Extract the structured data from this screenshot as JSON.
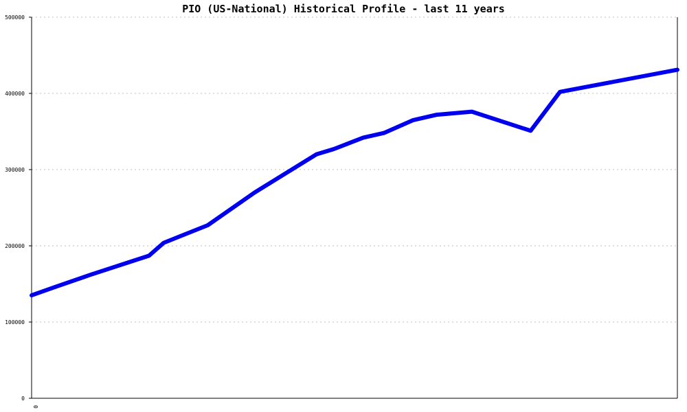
{
  "chart_data": {
    "type": "line",
    "title": "PIO (US-National) Historical Profile - last 11 years",
    "xlabel": "",
    "ylabel": "",
    "x_tick_labels": [
      "0"
    ],
    "y_tick_labels": [
      "0",
      "100000",
      "200000",
      "300000",
      "400000",
      "500000"
    ],
    "ylim": [
      0,
      500000
    ],
    "xlim": [
      0,
      22
    ],
    "grid": true,
    "legend": "none",
    "series": [
      {
        "color": "#0000ee",
        "x": [
          0,
          0.8,
          2,
          3.2,
          4,
          4.5,
          6,
          7.6,
          9.7,
          10.3,
          11.3,
          12,
          13,
          13.8,
          15,
          17,
          18,
          22
        ],
        "y": [
          135000,
          146000,
          162000,
          177000,
          187000,
          204000,
          227000,
          270000,
          320000,
          327000,
          342000,
          348000,
          365000,
          372000,
          376000,
          351000,
          402000,
          431000
        ]
      }
    ]
  }
}
